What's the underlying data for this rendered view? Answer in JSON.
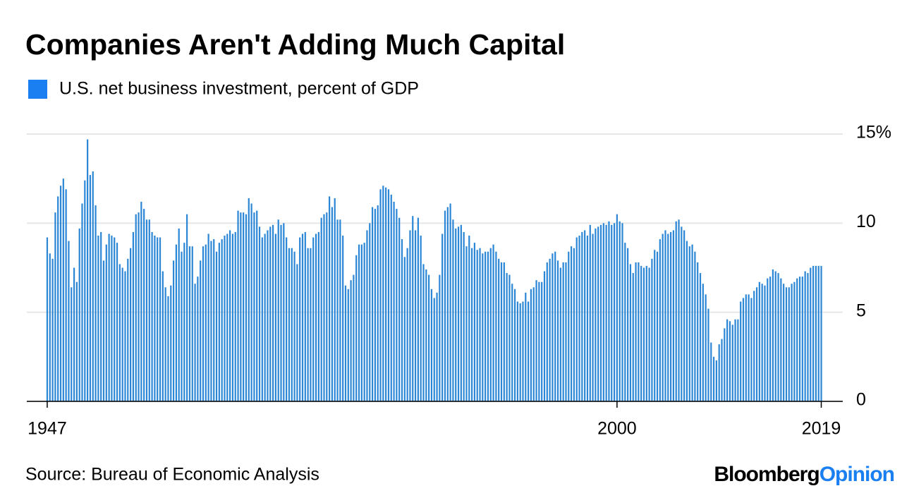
{
  "chart_data": {
    "type": "bar",
    "title": "Companies Aren't Adding Much Capital",
    "source": "Source: Bureau of Economic Analysis",
    "brand": {
      "name": "Bloomberg",
      "suffix": "Opinion",
      "suffix_color": "#1a7ff0"
    },
    "grid": true,
    "xlim": [
      1945.1,
      2021
    ],
    "xticks": [
      1947,
      2000,
      2019
    ],
    "ylim": [
      0,
      15
    ],
    "yticks": [
      0,
      5,
      10,
      {
        "value": 15,
        "label": "15%"
      }
    ],
    "series": [
      {
        "name": "U.S. net business investment, percent of GDP",
        "color": "#1a7ff0",
        "bar_color": "#2b86d6",
        "x": [
          1947,
          1947.25,
          1947.5,
          1947.75,
          1948,
          1948.25,
          1948.5,
          1948.75,
          1949,
          1949.25,
          1949.5,
          1949.75,
          1950,
          1950.25,
          1950.5,
          1950.75,
          1951,
          1951.25,
          1951.5,
          1951.75,
          1952,
          1952.25,
          1952.5,
          1952.75,
          1953,
          1953.25,
          1953.5,
          1953.75,
          1954,
          1954.25,
          1954.5,
          1954.75,
          1955,
          1955.25,
          1955.5,
          1955.75,
          1956,
          1956.25,
          1956.5,
          1956.75,
          1957,
          1957.25,
          1957.5,
          1957.75,
          1958,
          1958.25,
          1958.5,
          1958.75,
          1959,
          1959.25,
          1959.5,
          1959.75,
          1960,
          1960.25,
          1960.5,
          1960.75,
          1961,
          1961.25,
          1961.5,
          1961.75,
          1962,
          1962.25,
          1962.5,
          1962.75,
          1963,
          1963.25,
          1963.5,
          1963.75,
          1964,
          1964.25,
          1964.5,
          1964.75,
          1965,
          1965.25,
          1965.5,
          1965.75,
          1966,
          1966.25,
          1966.5,
          1966.75,
          1967,
          1967.25,
          1967.5,
          1967.75,
          1968,
          1968.25,
          1968.5,
          1968.75,
          1969,
          1969.25,
          1969.5,
          1969.75,
          1970,
          1970.25,
          1970.5,
          1970.75,
          1971,
          1971.25,
          1971.5,
          1971.75,
          1972,
          1972.25,
          1972.5,
          1972.75,
          1973,
          1973.25,
          1973.5,
          1973.75,
          1974,
          1974.25,
          1974.5,
          1974.75,
          1975,
          1975.25,
          1975.5,
          1975.75,
          1976,
          1976.25,
          1976.5,
          1976.75,
          1977,
          1977.25,
          1977.5,
          1977.75,
          1978,
          1978.25,
          1978.5,
          1978.75,
          1979,
          1979.25,
          1979.5,
          1979.75,
          1980,
          1980.25,
          1980.5,
          1980.75,
          1981,
          1981.25,
          1981.5,
          1981.75,
          1982,
          1982.25,
          1982.5,
          1982.75,
          1983,
          1983.25,
          1983.5,
          1983.75,
          1984,
          1984.25,
          1984.5,
          1984.75,
          1985,
          1985.25,
          1985.5,
          1985.75,
          1986,
          1986.25,
          1986.5,
          1986.75,
          1987,
          1987.25,
          1987.5,
          1987.75,
          1988,
          1988.25,
          1988.5,
          1988.75,
          1989,
          1989.25,
          1989.5,
          1989.75,
          1990,
          1990.25,
          1990.5,
          1990.75,
          1991,
          1991.25,
          1991.5,
          1991.75,
          1992,
          1992.25,
          1992.5,
          1992.75,
          1993,
          1993.25,
          1993.5,
          1993.75,
          1994,
          1994.25,
          1994.5,
          1994.75,
          1995,
          1995.25,
          1995.5,
          1995.75,
          1996,
          1996.25,
          1996.5,
          1996.75,
          1997,
          1997.25,
          1997.5,
          1997.75,
          1998,
          1998.25,
          1998.5,
          1998.75,
          1999,
          1999.25,
          1999.5,
          1999.75,
          2000,
          2000.25,
          2000.5,
          2000.75,
          2001,
          2001.25,
          2001.5,
          2001.75,
          2002,
          2002.25,
          2002.5,
          2002.75,
          2003,
          2003.25,
          2003.5,
          2003.75,
          2004,
          2004.25,
          2004.5,
          2004.75,
          2005,
          2005.25,
          2005.5,
          2005.75,
          2006,
          2006.25,
          2006.5,
          2006.75,
          2007,
          2007.25,
          2007.5,
          2007.75,
          2008,
          2008.25,
          2008.5,
          2008.75,
          2009,
          2009.25,
          2009.5,
          2009.75,
          2010,
          2010.25,
          2010.5,
          2010.75,
          2011,
          2011.25,
          2011.5,
          2011.75,
          2012,
          2012.25,
          2012.5,
          2012.75,
          2013,
          2013.25,
          2013.5,
          2013.75,
          2014,
          2014.25,
          2014.5,
          2014.75,
          2015,
          2015.25,
          2015.5,
          2015.75,
          2016,
          2016.25,
          2016.5,
          2016.75,
          2017,
          2017.25,
          2017.5,
          2017.75,
          2018,
          2018.25,
          2018.5,
          2018.75,
          2019
        ],
        "values": [
          9.2,
          8.3,
          8.0,
          10.6,
          11.5,
          12.1,
          12.5,
          11.9,
          9.0,
          6.4,
          7.5,
          6.7,
          9.7,
          11.1,
          12.4,
          14.7,
          12.7,
          12.9,
          11.0,
          9.3,
          9.5,
          7.9,
          8.8,
          9.4,
          9.3,
          9.2,
          8.9,
          7.7,
          7.5,
          7.3,
          8.0,
          8.6,
          9.5,
          10.5,
          10.6,
          11.2,
          10.8,
          10.2,
          10.2,
          9.5,
          9.3,
          9.2,
          9.2,
          7.3,
          6.4,
          5.9,
          6.5,
          7.9,
          8.8,
          9.7,
          8.4,
          8.9,
          10.5,
          8.7,
          8.7,
          6.6,
          7.0,
          7.9,
          8.7,
          8.8,
          9.4,
          9.0,
          9.1,
          8.4,
          8.9,
          9.1,
          9.3,
          9.4,
          9.6,
          9.4,
          9.5,
          10.7,
          10.6,
          10.6,
          10.5,
          11.4,
          11.1,
          10.6,
          10.7,
          9.8,
          9.2,
          9.4,
          9.6,
          9.8,
          9.9,
          9.4,
          10.2,
          9.9,
          10.0,
          9.2,
          8.6,
          8.6,
          8.4,
          7.7,
          9.2,
          9.4,
          9.5,
          8.6,
          8.6,
          9.2,
          9.4,
          9.5,
          10.3,
          10.5,
          10.6,
          11.5,
          10.9,
          11.4,
          10.2,
          10.2,
          9.3,
          6.5,
          6.3,
          6.8,
          7.1,
          8.2,
          8.8,
          8.8,
          8.9,
          9.6,
          10.0,
          10.9,
          10.8,
          11.0,
          11.9,
          12.1,
          12.0,
          11.9,
          11.6,
          11.2,
          10.8,
          10.3,
          9.1,
          8.1,
          8.6,
          9.6,
          10.4,
          9.6,
          10.3,
          9.3,
          7.7,
          7.4,
          7.1,
          6.3,
          5.8,
          6.1,
          7.1,
          9.4,
          10.7,
          10.9,
          11.1,
          10.2,
          9.7,
          9.8,
          9.9,
          9.5,
          8.7,
          9.3,
          8.6,
          8.9,
          8.5,
          8.6,
          8.3,
          8.4,
          8.4,
          8.6,
          8.8,
          8.4,
          8.0,
          7.8,
          7.8,
          7.2,
          7.1,
          6.6,
          6.3,
          5.6,
          5.5,
          5.6,
          6.1,
          5.6,
          6.3,
          6.4,
          6.8,
          6.7,
          6.7,
          7.3,
          7.8,
          8.0,
          8.3,
          8.4,
          7.9,
          7.5,
          7.8,
          7.8,
          8.4,
          8.7,
          8.6,
          9.2,
          9.3,
          9.5,
          9.6,
          9.3,
          9.9,
          9.4,
          9.7,
          9.8,
          9.9,
          10.0,
          9.9,
          10.1,
          9.9,
          10.0,
          10.5,
          10.1,
          10.0,
          8.9,
          8.6,
          7.7,
          7.2,
          7.8,
          7.8,
          7.6,
          7.5,
          7.6,
          7.5,
          8.0,
          8.5,
          8.4,
          9.1,
          9.4,
          9.6,
          9.4,
          9.5,
          9.6,
          10.1,
          10.2,
          9.8,
          9.6,
          9.0,
          8.7,
          8.8,
          8.4,
          7.8,
          7.2,
          6.6,
          6.0,
          5.2,
          3.3,
          2.5,
          2.3,
          3.2,
          3.5,
          4.1,
          4.6,
          4.5,
          4.3,
          4.6,
          4.6,
          5.6,
          5.8,
          6.0,
          6.0,
          5.8,
          6.2,
          6.4,
          6.7,
          6.6,
          6.5,
          6.9,
          7.0,
          7.4,
          7.3,
          7.2,
          6.9,
          6.6,
          6.4,
          6.4,
          6.6,
          6.7,
          6.9,
          7.0,
          7.0,
          7.3,
          7.2,
          7.5,
          7.6,
          7.6,
          7.6,
          7.6
        ]
      }
    ]
  }
}
